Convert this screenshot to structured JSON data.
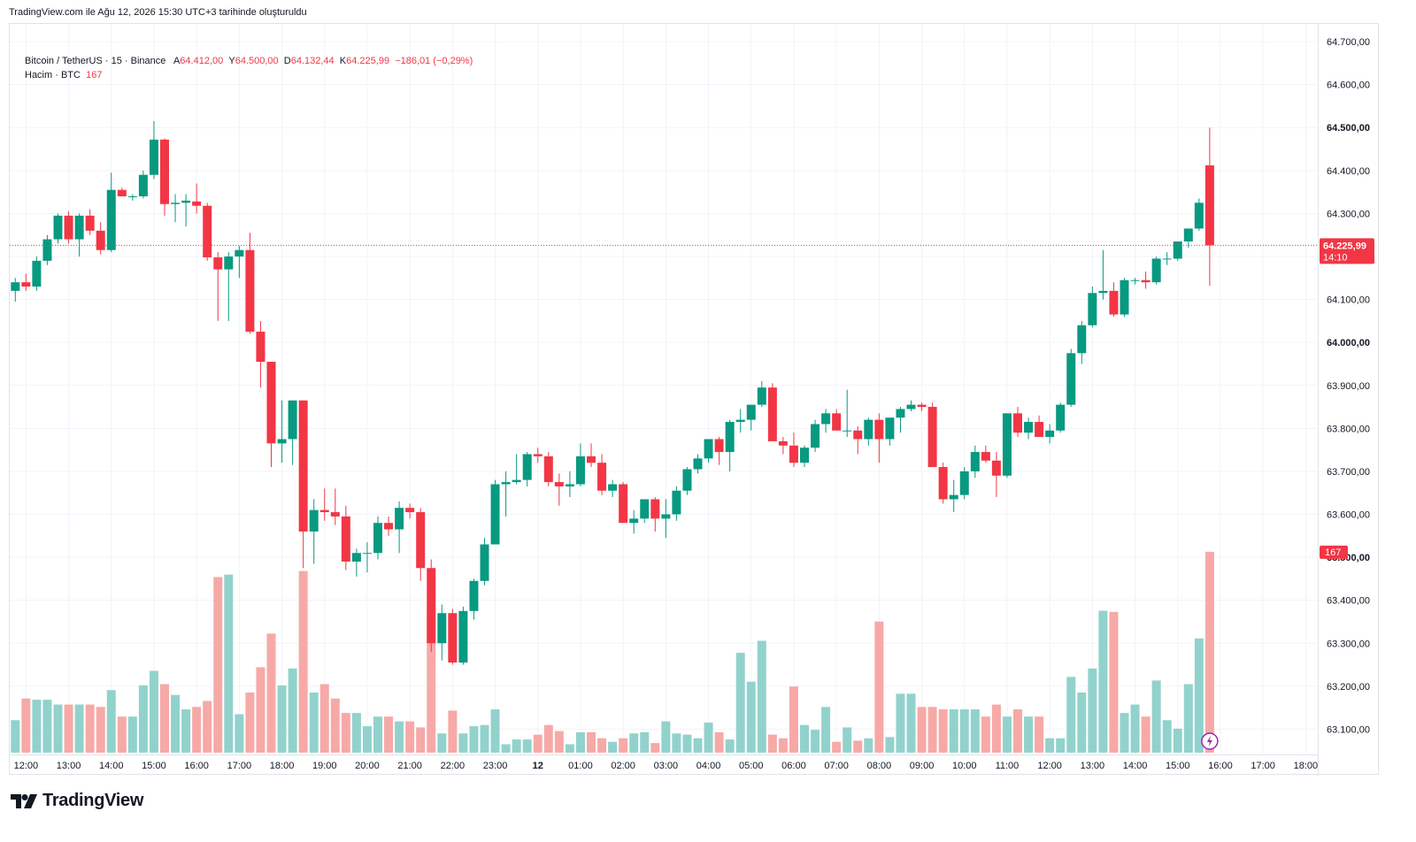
{
  "header": {
    "note": "TradingView.com ile Ağu 12, 2026 15:30 UTC+3 tarihinde oluşturuldu"
  },
  "legend": {
    "symbol": "Bitcoin / TetherUS · 15 · Binance",
    "o_label": "A",
    "o_value": "64.412,00",
    "h_label": "Y",
    "h_value": "64.500,00",
    "l_label": "D",
    "l_value": "64.132,44",
    "c_label": "K",
    "c_value": "64.225,99",
    "change": "−186,01 (−0,29%)",
    "volume_label": "Hacim · BTC",
    "volume_value": "167"
  },
  "price_tag": {
    "price": "64.225,99",
    "countdown": "14:10"
  },
  "volume_tag": "167",
  "logo": {
    "text": "TradingView"
  },
  "colors": {
    "up": "#089981",
    "down": "#f23645",
    "vol_up": "#92d2cc",
    "vol_down": "#f7a9a7",
    "grid": "#f0f3fa",
    "text": "#131722"
  },
  "chart_data": {
    "type": "candlestick",
    "symbol": "Bitcoin / TetherUS",
    "interval": "15",
    "y_ticks": [
      "64.700,00",
      "64.600,00",
      "64.500,00",
      "64.400,00",
      "64.300,00",
      "64.200,00",
      "64.100,00",
      "64.000,00",
      "63.900,00",
      "63.800,00",
      "63.700,00",
      "63.600,00",
      "63.500,00",
      "63.400,00",
      "63.300,00",
      "63.200,00",
      "63.100,00"
    ],
    "y_tick_values": [
      64700,
      64600,
      64500,
      64400,
      64300,
      64200,
      64100,
      64000,
      63900,
      63800,
      63700,
      63600,
      63500,
      63400,
      63300,
      63200,
      63100
    ],
    "bold_y_ticks": [
      "64.500,00",
      "64.000,00",
      "63.500,00"
    ],
    "ylim": [
      63070,
      64730
    ],
    "x_ticks": [
      "12:00",
      "13:00",
      "14:00",
      "15:00",
      "16:00",
      "17:00",
      "18:00",
      "19:00",
      "20:00",
      "21:00",
      "22:00",
      "23:00",
      "12",
      "01:00",
      "02:00",
      "03:00",
      "04:00",
      "05:00",
      "06:00",
      "07:00",
      "08:00",
      "09:00",
      "10:00",
      "11:00",
      "12:00",
      "13:00",
      "14:00",
      "15:00",
      "16:00",
      "17:00",
      "18:00"
    ],
    "x_tick_index": [
      1,
      5,
      9,
      13,
      17,
      21,
      25,
      29,
      33,
      37,
      41,
      45,
      49,
      53,
      57,
      61,
      65,
      69,
      73,
      77,
      81,
      85,
      89,
      93,
      97,
      101,
      105,
      109,
      113,
      117,
      121
    ],
    "bold_x_ticks": [
      "12"
    ],
    "bars_total": 122,
    "last_price": 64225.99,
    "current_volume": 167,
    "candles": [
      {
        "o": 64120,
        "h": 64150,
        "l": 64095,
        "c": 64140,
        "v": 27
      },
      {
        "o": 64140,
        "h": 64160,
        "l": 64120,
        "c": 64130,
        "v": 45
      },
      {
        "o": 64130,
        "h": 64200,
        "l": 64120,
        "c": 64190,
        "v": 44
      },
      {
        "o": 64190,
        "h": 64250,
        "l": 64180,
        "c": 64240,
        "v": 44
      },
      {
        "o": 64240,
        "h": 64300,
        "l": 64230,
        "c": 64295,
        "v": 40
      },
      {
        "o": 64295,
        "h": 64305,
        "l": 64230,
        "c": 64240,
        "v": 40
      },
      {
        "o": 64240,
        "h": 64300,
        "l": 64200,
        "c": 64295,
        "v": 40
      },
      {
        "o": 64295,
        "h": 64310,
        "l": 64250,
        "c": 64260,
        "v": 40
      },
      {
        "o": 64260,
        "h": 64280,
        "l": 64205,
        "c": 64215,
        "v": 38
      },
      {
        "o": 64215,
        "h": 64395,
        "l": 64210,
        "c": 64355,
        "v": 52
      },
      {
        "o": 64355,
        "h": 64360,
        "l": 64340,
        "c": 64340,
        "v": 30
      },
      {
        "o": 64340,
        "h": 64345,
        "l": 64330,
        "c": 64340,
        "v": 30
      },
      {
        "o": 64340,
        "h": 64400,
        "l": 64335,
        "c": 64390,
        "v": 56
      },
      {
        "o": 64390,
        "h": 64515,
        "l": 64380,
        "c": 64472,
        "v": 68
      },
      {
        "o": 64472,
        "h": 64475,
        "l": 64295,
        "c": 64322,
        "v": 57
      },
      {
        "o": 64322,
        "h": 64345,
        "l": 64280,
        "c": 64325,
        "v": 48
      },
      {
        "o": 64325,
        "h": 64345,
        "l": 64270,
        "c": 64330,
        "v": 36
      },
      {
        "o": 64328,
        "h": 64370,
        "l": 64300,
        "c": 64318,
        "v": 38
      },
      {
        "o": 64318,
        "h": 64325,
        "l": 64190,
        "c": 64198,
        "v": 43
      },
      {
        "o": 64198,
        "h": 64210,
        "l": 64050,
        "c": 64170,
        "v": 146
      },
      {
        "o": 64170,
        "h": 64210,
        "l": 64050,
        "c": 64200,
        "v": 148
      },
      {
        "o": 64200,
        "h": 64225,
        "l": 64150,
        "c": 64215,
        "v": 32
      },
      {
        "o": 64215,
        "h": 64255,
        "l": 64020,
        "c": 64025,
        "v": 50
      },
      {
        "o": 64025,
        "h": 64050,
        "l": 63895,
        "c": 63955,
        "v": 71
      },
      {
        "o": 63955,
        "h": 63955,
        "l": 63710,
        "c": 63765,
        "v": 99
      },
      {
        "o": 63765,
        "h": 63865,
        "l": 63720,
        "c": 63775,
        "v": 56
      },
      {
        "o": 63775,
        "h": 63865,
        "l": 63715,
        "c": 63865,
        "v": 70
      },
      {
        "o": 63865,
        "h": 63865,
        "l": 63475,
        "c": 63560,
        "v": 151
      },
      {
        "o": 63560,
        "h": 63635,
        "l": 63485,
        "c": 63610,
        "v": 50
      },
      {
        "o": 63610,
        "h": 63660,
        "l": 63585,
        "c": 63605,
        "v": 57
      },
      {
        "o": 63605,
        "h": 63660,
        "l": 63575,
        "c": 63595,
        "v": 45
      },
      {
        "o": 63595,
        "h": 63620,
        "l": 63470,
        "c": 63490,
        "v": 33
      },
      {
        "o": 63490,
        "h": 63520,
        "l": 63455,
        "c": 63510,
        "v": 33
      },
      {
        "o": 63510,
        "h": 63535,
        "l": 63465,
        "c": 63510,
        "v": 22
      },
      {
        "o": 63510,
        "h": 63595,
        "l": 63495,
        "c": 63580,
        "v": 30
      },
      {
        "o": 63580,
        "h": 63595,
        "l": 63550,
        "c": 63565,
        "v": 30
      },
      {
        "o": 63565,
        "h": 63630,
        "l": 63510,
        "c": 63615,
        "v": 26
      },
      {
        "o": 63615,
        "h": 63625,
        "l": 63590,
        "c": 63605,
        "v": 26
      },
      {
        "o": 63605,
        "h": 63615,
        "l": 63445,
        "c": 63475,
        "v": 21
      },
      {
        "o": 63475,
        "h": 63495,
        "l": 63280,
        "c": 63300,
        "v": 117
      },
      {
        "o": 63300,
        "h": 63390,
        "l": 63260,
        "c": 63370,
        "v": 16
      },
      {
        "o": 63370,
        "h": 63380,
        "l": 63250,
        "c": 63255,
        "v": 35
      },
      {
        "o": 63255,
        "h": 63385,
        "l": 63250,
        "c": 63375,
        "v": 16
      },
      {
        "o": 63375,
        "h": 63450,
        "l": 63355,
        "c": 63445,
        "v": 22
      },
      {
        "o": 63445,
        "h": 63545,
        "l": 63435,
        "c": 63530,
        "v": 23
      },
      {
        "o": 63530,
        "h": 63680,
        "l": 63530,
        "c": 63670,
        "v": 36
      },
      {
        "o": 63670,
        "h": 63700,
        "l": 63595,
        "c": 63675,
        "v": 7
      },
      {
        "o": 63675,
        "h": 63740,
        "l": 63670,
        "c": 63680,
        "v": 11
      },
      {
        "o": 63680,
        "h": 63745,
        "l": 63665,
        "c": 63740,
        "v": 11
      },
      {
        "o": 63740,
        "h": 63755,
        "l": 63720,
        "c": 63735,
        "v": 15
      },
      {
        "o": 63735,
        "h": 63745,
        "l": 63665,
        "c": 63675,
        "v": 23
      },
      {
        "o": 63675,
        "h": 63695,
        "l": 63620,
        "c": 63665,
        "v": 18
      },
      {
        "o": 63665,
        "h": 63700,
        "l": 63640,
        "c": 63670,
        "v": 7
      },
      {
        "o": 63670,
        "h": 63765,
        "l": 63665,
        "c": 63735,
        "v": 17
      },
      {
        "o": 63735,
        "h": 63765,
        "l": 63710,
        "c": 63720,
        "v": 17
      },
      {
        "o": 63720,
        "h": 63740,
        "l": 63645,
        "c": 63655,
        "v": 12
      },
      {
        "o": 63655,
        "h": 63680,
        "l": 63640,
        "c": 63670,
        "v": 9
      },
      {
        "o": 63670,
        "h": 63675,
        "l": 63580,
        "c": 63580,
        "v": 12
      },
      {
        "o": 63580,
        "h": 63610,
        "l": 63555,
        "c": 63590,
        "v": 16
      },
      {
        "o": 63590,
        "h": 63620,
        "l": 63580,
        "c": 63635,
        "v": 17
      },
      {
        "o": 63635,
        "h": 63640,
        "l": 63560,
        "c": 63590,
        "v": 8
      },
      {
        "o": 63590,
        "h": 63635,
        "l": 63545,
        "c": 63600,
        "v": 26
      },
      {
        "o": 63600,
        "h": 63665,
        "l": 63585,
        "c": 63655,
        "v": 16
      },
      {
        "o": 63655,
        "h": 63710,
        "l": 63645,
        "c": 63705,
        "v": 15
      },
      {
        "o": 63705,
        "h": 63740,
        "l": 63695,
        "c": 63730,
        "v": 12
      },
      {
        "o": 63730,
        "h": 63770,
        "l": 63720,
        "c": 63775,
        "v": 25
      },
      {
        "o": 63775,
        "h": 63780,
        "l": 63715,
        "c": 63745,
        "v": 17
      },
      {
        "o": 63745,
        "h": 63820,
        "l": 63700,
        "c": 63815,
        "v": 11
      },
      {
        "o": 63815,
        "h": 63845,
        "l": 63790,
        "c": 63820,
        "v": 83
      },
      {
        "o": 63820,
        "h": 63855,
        "l": 63795,
        "c": 63855,
        "v": 59
      },
      {
        "o": 63855,
        "h": 63910,
        "l": 63850,
        "c": 63895,
        "v": 93
      },
      {
        "o": 63895,
        "h": 63905,
        "l": 63785,
        "c": 63770,
        "v": 15
      },
      {
        "o": 63770,
        "h": 63780,
        "l": 63740,
        "c": 63760,
        "v": 12
      },
      {
        "o": 63760,
        "h": 63790,
        "l": 63710,
        "c": 63720,
        "v": 55
      },
      {
        "o": 63720,
        "h": 63760,
        "l": 63710,
        "c": 63755,
        "v": 23
      },
      {
        "o": 63755,
        "h": 63820,
        "l": 63745,
        "c": 63810,
        "v": 19
      },
      {
        "o": 63810,
        "h": 63845,
        "l": 63790,
        "c": 63835,
        "v": 38
      },
      {
        "o": 63835,
        "h": 63845,
        "l": 63795,
        "c": 63795,
        "v": 9
      },
      {
        "o": 63795,
        "h": 63890,
        "l": 63780,
        "c": 63795,
        "v": 21
      },
      {
        "o": 63795,
        "h": 63805,
        "l": 63740,
        "c": 63775,
        "v": 10
      },
      {
        "o": 63775,
        "h": 63825,
        "l": 63760,
        "c": 63820,
        "v": 12
      },
      {
        "o": 63820,
        "h": 63835,
        "l": 63720,
        "c": 63775,
        "v": 109
      },
      {
        "o": 63775,
        "h": 63820,
        "l": 63760,
        "c": 63825,
        "v": 13
      },
      {
        "o": 63825,
        "h": 63850,
        "l": 63790,
        "c": 63845,
        "v": 49
      },
      {
        "o": 63845,
        "h": 63865,
        "l": 63840,
        "c": 63855,
        "v": 49
      },
      {
        "o": 63855,
        "h": 63860,
        "l": 63840,
        "c": 63850,
        "v": 38
      },
      {
        "o": 63850,
        "h": 63860,
        "l": 63710,
        "c": 63710,
        "v": 38
      },
      {
        "o": 63710,
        "h": 63720,
        "l": 63625,
        "c": 63635,
        "v": 36
      },
      {
        "o": 63635,
        "h": 63680,
        "l": 63605,
        "c": 63645,
        "v": 36
      },
      {
        "o": 63645,
        "h": 63710,
        "l": 63635,
        "c": 63700,
        "v": 36
      },
      {
        "o": 63700,
        "h": 63760,
        "l": 63685,
        "c": 63745,
        "v": 36
      },
      {
        "o": 63745,
        "h": 63760,
        "l": 63720,
        "c": 63725,
        "v": 30
      },
      {
        "o": 63725,
        "h": 63745,
        "l": 63640,
        "c": 63690,
        "v": 40
      },
      {
        "o": 63690,
        "h": 63835,
        "l": 63685,
        "c": 63835,
        "v": 30
      },
      {
        "o": 63835,
        "h": 63850,
        "l": 63780,
        "c": 63790,
        "v": 36
      },
      {
        "o": 63790,
        "h": 63825,
        "l": 63775,
        "c": 63815,
        "v": 30
      },
      {
        "o": 63815,
        "h": 63830,
        "l": 63780,
        "c": 63780,
        "v": 30
      },
      {
        "o": 63780,
        "h": 63810,
        "l": 63765,
        "c": 63795,
        "v": 12
      },
      {
        "o": 63795,
        "h": 63860,
        "l": 63790,
        "c": 63855,
        "v": 12
      },
      {
        "o": 63855,
        "h": 63985,
        "l": 63850,
        "c": 63975,
        "v": 63
      },
      {
        "o": 63975,
        "h": 64050,
        "l": 63950,
        "c": 64040,
        "v": 50
      },
      {
        "o": 64040,
        "h": 64130,
        "l": 64035,
        "c": 64115,
        "v": 70
      },
      {
        "o": 64115,
        "h": 64215,
        "l": 64100,
        "c": 64120,
        "v": 118
      },
      {
        "o": 64120,
        "h": 64140,
        "l": 64060,
        "c": 64065,
        "v": 117
      },
      {
        "o": 64065,
        "h": 64150,
        "l": 64060,
        "c": 64145,
        "v": 33
      },
      {
        "o": 64145,
        "h": 64150,
        "l": 64135,
        "c": 64145,
        "v": 40
      },
      {
        "o": 64145,
        "h": 64165,
        "l": 64125,
        "c": 64140,
        "v": 30
      },
      {
        "o": 64140,
        "h": 64200,
        "l": 64135,
        "c": 64195,
        "v": 60
      },
      {
        "o": 64195,
        "h": 64210,
        "l": 64180,
        "c": 64195,
        "v": 27
      },
      {
        "o": 64195,
        "h": 64230,
        "l": 64190,
        "c": 64235,
        "v": 20
      },
      {
        "o": 64235,
        "h": 64265,
        "l": 64220,
        "c": 64265,
        "v": 57
      },
      {
        "o": 64265,
        "h": 64335,
        "l": 64260,
        "c": 64325,
        "v": 95
      },
      {
        "o": 64412,
        "h": 64500,
        "l": 64132,
        "c": 64225.99,
        "v": 167
      }
    ]
  }
}
